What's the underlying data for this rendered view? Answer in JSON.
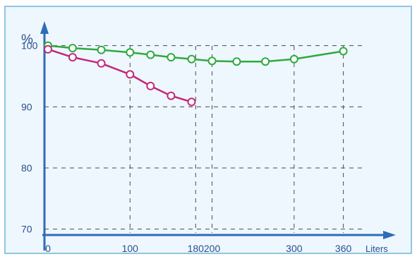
{
  "chart_data": {
    "type": "line",
    "title": "",
    "ylabel": "%",
    "xlabel": "Liters",
    "x_ticks": [
      0,
      100,
      180,
      200,
      300,
      360
    ],
    "y_ticks": [
      70,
      80,
      90,
      100
    ],
    "xlim": [
      0,
      430
    ],
    "ylim": [
      66.5,
      104
    ],
    "grid": true,
    "series": [
      {
        "color": "#2eaa3f",
        "x": [
          0,
          30,
          65,
          100,
          125,
          150,
          175,
          200,
          230,
          265,
          300,
          360
        ],
        "y": [
          100,
          99.6,
          99.3,
          98.9,
          98.5,
          98.1,
          97.8,
          97.5,
          97.4,
          97.4,
          97.8,
          99.1
        ]
      },
      {
        "color": "#c2287c",
        "x": [
          0,
          30,
          65,
          100,
          125,
          150,
          175
        ],
        "y": [
          99.4,
          98.1,
          97.1,
          95.3,
          93.4,
          91.8,
          90.8
        ]
      }
    ]
  }
}
